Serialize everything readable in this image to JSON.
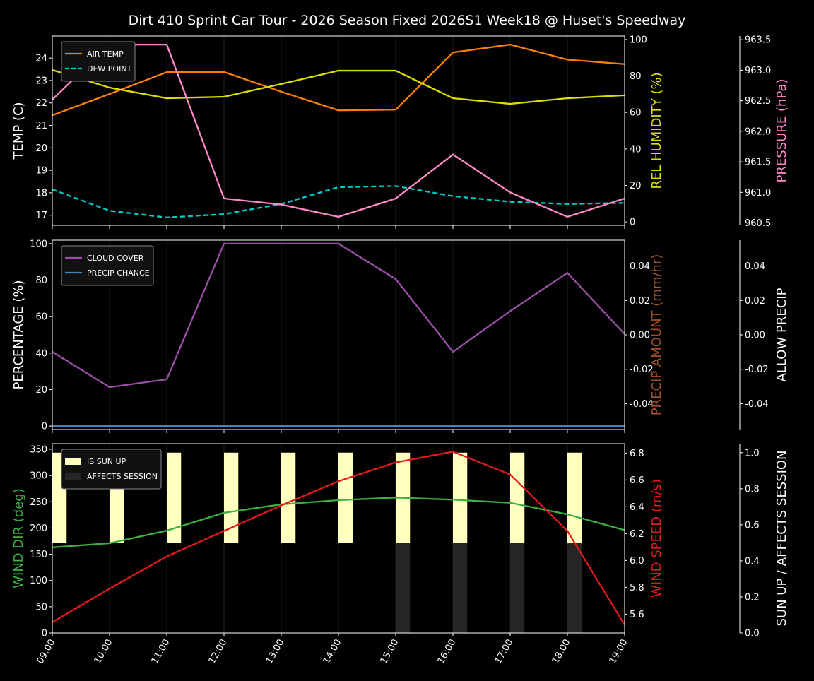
{
  "title": "Dirt 410 Sprint Car Tour - 2026 Season Fixed 2026S1 Week18 @ Huset's Speedway",
  "chart_data": [
    {
      "type": "line",
      "x": [
        "09:00",
        "10:00",
        "11:00",
        "12:00",
        "13:00",
        "14:00",
        "15:00",
        "16:00",
        "17:00",
        "18:00",
        "19:00"
      ],
      "axes": {
        "left": {
          "label": "TEMP (C)",
          "range": [
            16.55,
            24.98
          ],
          "ticks": [
            17,
            18,
            19,
            20,
            21,
            22,
            23,
            24
          ],
          "color": "#ffffff"
        },
        "right": {
          "label": "REL HUMIDITY (%)",
          "range": [
            -1.9,
            101.9
          ],
          "ticks": [
            0,
            20,
            40,
            60,
            80,
            100
          ],
          "color": "#dddd00"
        },
        "right2": {
          "label": "PRESSURE (hPa)",
          "range": [
            960.46,
            963.56
          ],
          "ticks": [
            960.5,
            961.0,
            961.5,
            962.0,
            962.5,
            963.0,
            963.5
          ],
          "color": "#ff88c8"
        }
      },
      "series": [
        {
          "name": "AIR TEMP",
          "axis": "left",
          "color": "#ff8000",
          "dash": false,
          "values": [
            21.45,
            22.4,
            23.37,
            23.38,
            22.5,
            21.67,
            21.7,
            24.25,
            24.6,
            23.93,
            23.73
          ]
        },
        {
          "name": "DEW POINT",
          "axis": "left",
          "color": "#00cccc",
          "dash": true,
          "values": [
            18.15,
            17.2,
            16.9,
            17.05,
            17.5,
            18.25,
            18.3,
            17.85,
            17.6,
            17.5,
            17.55
          ]
        },
        {
          "axis": "right",
          "color": "#dddd00",
          "dash": false,
          "values": [
            83.3,
            73.6,
            67.8,
            68.6,
            75.6,
            82.9,
            82.9,
            67.8,
            64.7,
            67.8,
            69.4
          ]
        },
        {
          "axis": "right2",
          "color": "#ff88c8",
          "dash": false,
          "values": [
            962.52,
            963.42,
            963.42,
            960.9,
            960.8,
            960.6,
            960.9,
            961.62,
            961.0,
            960.6,
            960.9
          ]
        }
      ],
      "legend": "top-left",
      "grid": "vertical"
    },
    {
      "type": "line",
      "x": [
        "09:00",
        "10:00",
        "11:00",
        "12:00",
        "13:00",
        "14:00",
        "15:00",
        "16:00",
        "17:00",
        "18:00",
        "19:00"
      ],
      "axes": {
        "left": {
          "label": "PERCENTAGE (%)",
          "range": [
            -1.9,
            101.9
          ],
          "ticks": [
            0,
            20,
            40,
            60,
            80,
            100
          ],
          "color": "#ffffff"
        },
        "right": {
          "label": "PRECIP AMOUNT (mm/hr)",
          "range": [
            -0.055,
            0.055
          ],
          "ticks": [
            -0.04,
            -0.02,
            0.0,
            0.02,
            0.04
          ],
          "color": "#a0522d"
        },
        "right2": {
          "label": "ALLOW PRECIP",
          "range": [
            -0.055,
            0.055
          ],
          "ticks": [
            -0.04,
            -0.02,
            0.0,
            0.02,
            0.04
          ],
          "color": "#ffffff"
        }
      },
      "series": [
        {
          "name": "CLOUD COVER",
          "axis": "left",
          "color": "#9b4fa8",
          "dash": false,
          "values": [
            40.7,
            21.3,
            25.6,
            100,
            100,
            100,
            80.6,
            40.7,
            63,
            84,
            50.4
          ]
        },
        {
          "name": "PRECIP CHANCE",
          "axis": "left",
          "color": "#4682b4",
          "dash": false,
          "values": [
            0,
            0,
            0,
            0,
            0,
            0,
            0,
            0,
            0,
            0,
            0
          ]
        }
      ],
      "legend": "top-left",
      "grid": "vertical"
    },
    {
      "type": "line",
      "x": [
        "09:00",
        "10:00",
        "11:00",
        "12:00",
        "13:00",
        "14:00",
        "15:00",
        "16:00",
        "17:00",
        "18:00",
        "19:00"
      ],
      "axes": {
        "left": {
          "label": "WIND DIR (deg)",
          "range": [
            0,
            360.7
          ],
          "ticks": [
            0,
            50,
            100,
            150,
            200,
            250,
            300,
            350
          ],
          "color": "#3cb043"
        },
        "right": {
          "label": "WIND SPEED (m/s)",
          "range": [
            5.46,
            6.87
          ],
          "ticks": [
            5.6,
            5.8,
            6.0,
            6.2,
            6.4,
            6.6,
            6.8
          ],
          "color": "#e31a1c"
        },
        "right2": {
          "label": "SUN UP / AFFECTS SESSION",
          "range": [
            0,
            1.05
          ],
          "ticks": [
            0.0,
            0.2,
            0.4,
            0.6,
            0.8,
            1.0
          ],
          "color": "#ffffff"
        }
      },
      "bars": [
        {
          "name": "IS SUN UP",
          "color": "#ffffc0",
          "values": [
            1,
            1,
            1,
            1,
            1,
            1,
            1,
            1,
            1,
            1,
            0
          ]
        },
        {
          "name": "AFFECTS SESSION",
          "color": "#252525",
          "values": [
            0,
            0,
            0,
            0,
            0,
            0,
            1,
            1,
            1,
            1,
            0
          ]
        }
      ],
      "series": [
        {
          "axis": "left",
          "color": "#3cb043",
          "dash": false,
          "values": [
            163,
            171,
            195,
            229,
            245,
            253,
            258,
            254,
            248,
            226,
            196
          ]
        },
        {
          "axis": "right",
          "color": "#e31a1c",
          "dash": false,
          "values": [
            5.54,
            5.79,
            6.03,
            6.22,
            6.41,
            6.59,
            6.73,
            6.81,
            6.64,
            6.22,
            5.52
          ]
        }
      ],
      "legend": "top-left",
      "grid": "vertical"
    }
  ]
}
